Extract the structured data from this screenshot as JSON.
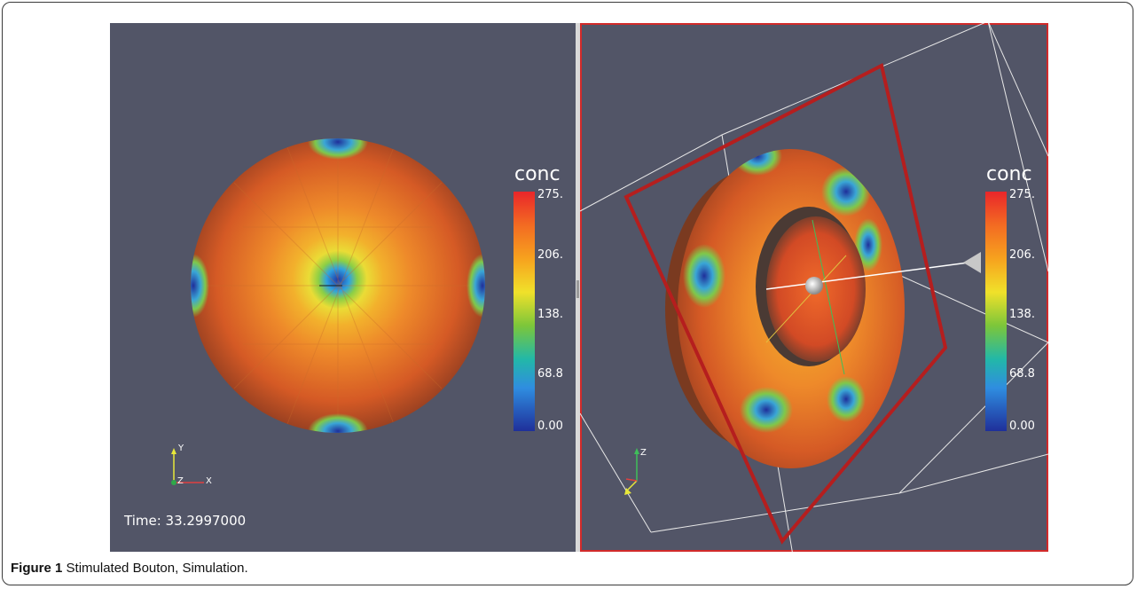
{
  "left_view": {
    "colorbar": {
      "title": "conc",
      "ticks": [
        "275.",
        "206.",
        "138.",
        "68.8",
        "0.00"
      ]
    },
    "axes": {
      "y": "Y",
      "z": "Z",
      "x": "X"
    },
    "time_label": "Time: 33.2997000"
  },
  "right_view": {
    "colorbar": {
      "title": "conc",
      "ticks": [
        "275.",
        "206.",
        "138.",
        "68.8",
        "0.00"
      ]
    },
    "axes": {
      "z": "Z"
    }
  },
  "caption": {
    "label": "Figure 1",
    "text": "Stimulated Bouton, Simulation."
  },
  "colors": {
    "background": "#525567",
    "active_border": "#d22a2a"
  }
}
